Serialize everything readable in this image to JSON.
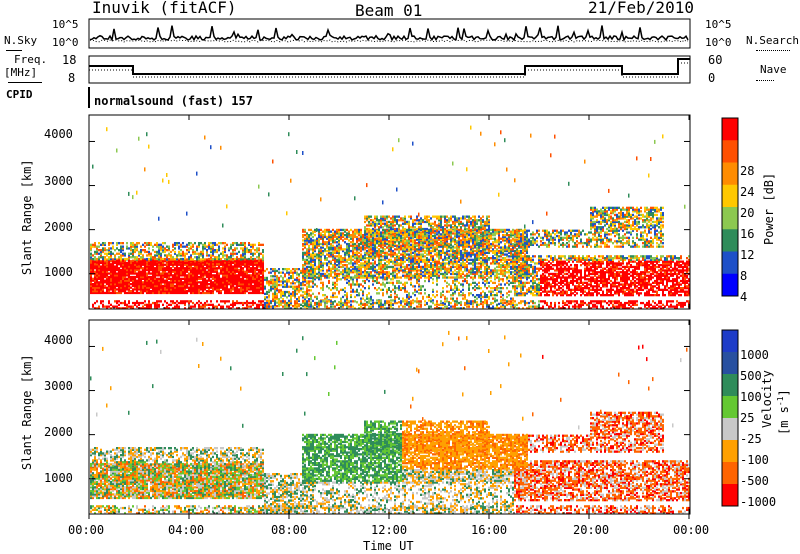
{
  "header": {
    "station": "Inuvik (fitACF)",
    "beam": "Beam 01",
    "date": "21/Feb/2010"
  },
  "noise_panel": {
    "left_label": "N.Sky",
    "right_label": "N.Search",
    "left_ticks": [
      "10^5",
      "10^0"
    ],
    "right_ticks": [
      "10^5",
      "10^0"
    ]
  },
  "freq_panel": {
    "left_label_1": "Freq.",
    "left_label_2": "[MHz]",
    "right_label": "Nave",
    "left_ticks": [
      "18",
      "8"
    ],
    "right_ticks": [
      "60",
      "0"
    ]
  },
  "cpid": {
    "label": "CPID",
    "value": "normalsound (fast) 157"
  },
  "chart_data": [
    {
      "type": "heatmap",
      "quantity": "power",
      "ylabel": "Slant Range [km]",
      "yticks": [
        1000,
        2000,
        3000,
        4000
      ],
      "ylim": [
        200,
        4600
      ],
      "colorbar_label": "Power [dB]",
      "colorbar_ticks": [
        "4",
        "8",
        "12",
        "16",
        "20",
        "24",
        "28"
      ],
      "colorbar_colors": [
        "#0000ff",
        "#1e50c8",
        "#2f8c5a",
        "#8cc850",
        "#ffc800",
        "#ff8c00",
        "#ff5000",
        "#ff0000"
      ]
    },
    {
      "type": "heatmap",
      "quantity": "velocity",
      "ylabel": "Slant Range [km]",
      "yticks": [
        1000,
        2000,
        3000,
        4000
      ],
      "ylim": [
        200,
        4600
      ],
      "colorbar_label": "Velocity",
      "colorbar_unit": "[m s",
      "colorbar_unit_sup": "-1",
      "colorbar_ticks": [
        "1000",
        "500",
        "100",
        "25",
        "-25",
        "-100",
        "-500",
        "-1000"
      ],
      "colorbar_colors": [
        "#1e3cc8",
        "#2850a0",
        "#2f8c5a",
        "#64c832",
        "#c8c8c8",
        "#ffa000",
        "#ff6400",
        "#ff0000"
      ]
    }
  ],
  "time_axis": {
    "label": "Time UT",
    "ticks": [
      "00:00",
      "04:00",
      "08:00",
      "12:00",
      "16:00",
      "20:00",
      "00:00"
    ]
  }
}
